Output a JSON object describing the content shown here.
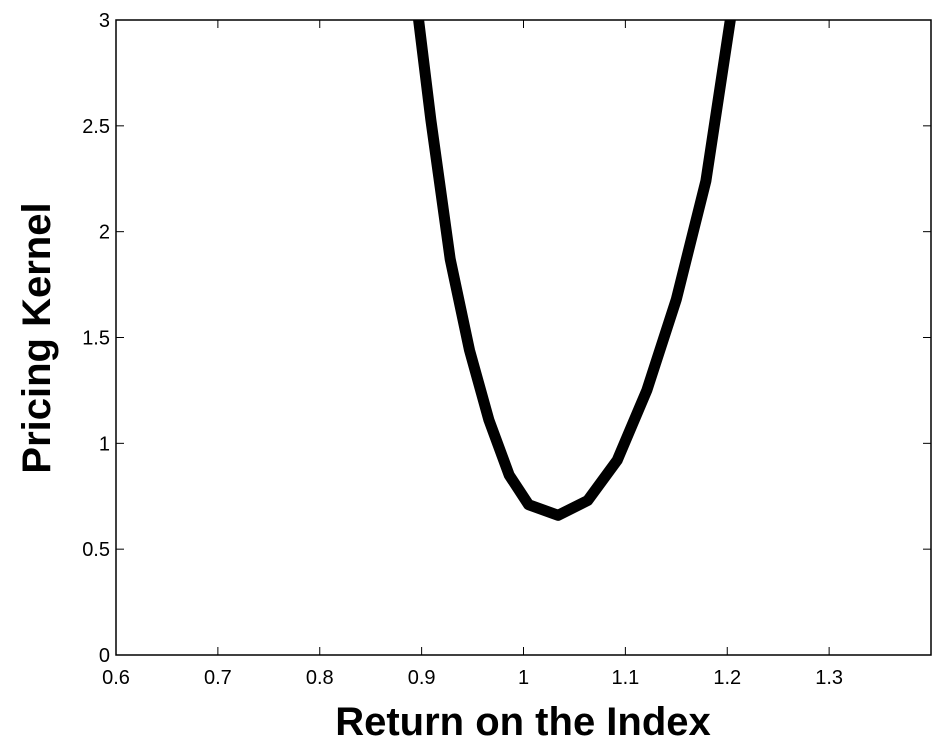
{
  "chart_data": {
    "type": "line",
    "x": [
      0.897,
      0.909,
      0.928,
      0.947,
      0.966,
      0.986,
      1.005,
      1.034,
      1.063,
      1.092,
      1.121,
      1.15,
      1.179,
      1.203
    ],
    "values": [
      3.0,
      2.53,
      1.87,
      1.44,
      1.11,
      0.85,
      0.71,
      0.66,
      0.73,
      0.92,
      1.25,
      1.68,
      2.24,
      3.0
    ],
    "color": "#000000",
    "xlabel": "Return on the Index",
    "ylabel": "Pricing Kernel",
    "xlim": [
      0.6,
      1.4
    ],
    "xticks": [
      0.6,
      0.7,
      0.8,
      0.9,
      1,
      1.1,
      1.2,
      1.3
    ],
    "ylim": [
      0,
      3
    ],
    "yticks": [
      0,
      0.5,
      1,
      1.5,
      2,
      2.5,
      3
    ]
  }
}
